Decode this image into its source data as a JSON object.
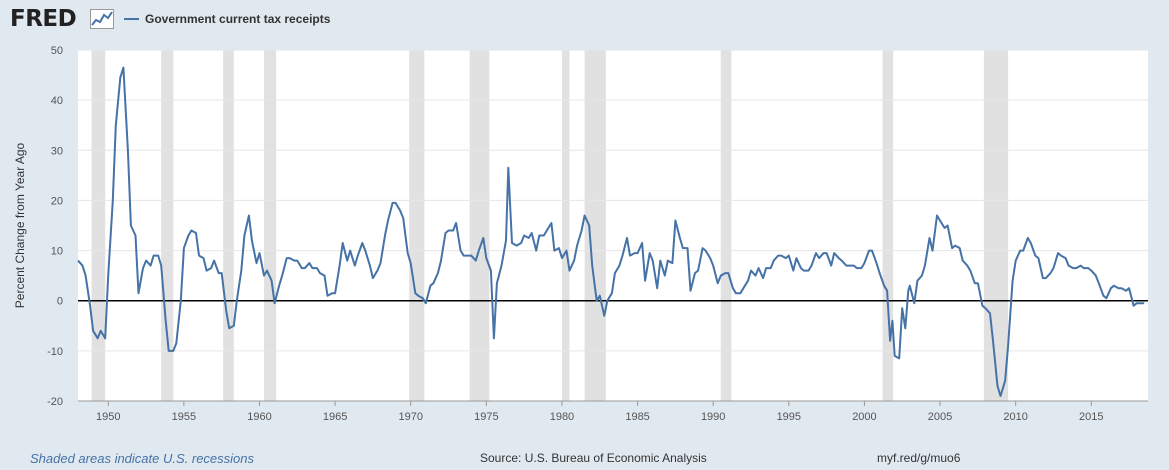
{
  "header": {
    "logo_text": "FRED",
    "logo_icon": "line-chart-icon"
  },
  "footer": {
    "recessions_note": "Shaded areas indicate U.S. recessions",
    "source": "Source: U.S. Bureau of Economic Analysis",
    "url": "myf.red/g/muo6"
  },
  "colors": {
    "line": "#4572a7",
    "recession": "#e1e1e1",
    "zero_line": "#000000",
    "grid": "#e6e6e6",
    "background": "#e1e9f0"
  },
  "chart_data": {
    "type": "line",
    "ylabel": "Percent Change from Year Ago",
    "xlabel": "",
    "xlim": [
      1948.0,
      2018.75
    ],
    "ylim": [
      -20,
      50
    ],
    "yticks": [
      "-20",
      "-10",
      "0",
      "10",
      "20",
      "30",
      "40",
      "50"
    ],
    "xticks": [
      "1950",
      "1955",
      "1960",
      "1965",
      "1970",
      "1975",
      "1980",
      "1985",
      "1990",
      "1995",
      "2000",
      "2005",
      "2010",
      "2015"
    ],
    "grid": "horizontal",
    "legend": "top-left",
    "recessions": [
      [
        1948.9,
        1949.8
      ],
      [
        1953.5,
        1954.3
      ],
      [
        1957.6,
        1958.3
      ],
      [
        1960.3,
        1961.1
      ],
      [
        1969.9,
        1970.9
      ],
      [
        1973.9,
        1975.2
      ],
      [
        1980.0,
        1980.5
      ],
      [
        1981.5,
        1982.9
      ],
      [
        1990.5,
        1991.2
      ],
      [
        2001.2,
        2001.9
      ],
      [
        2007.9,
        2009.5
      ]
    ],
    "series": [
      {
        "name": "Government current tax receipts",
        "points": [
          [
            1948.0,
            8
          ],
          [
            1948.3,
            7
          ],
          [
            1948.5,
            5
          ],
          [
            1948.8,
            -1
          ],
          [
            1949.0,
            -6
          ],
          [
            1949.3,
            -7.5
          ],
          [
            1949.5,
            -6
          ],
          [
            1949.8,
            -7.5
          ],
          [
            1950.0,
            5
          ],
          [
            1950.3,
            20
          ],
          [
            1950.5,
            35
          ],
          [
            1950.8,
            44.5
          ],
          [
            1951.0,
            46.5
          ],
          [
            1951.3,
            30
          ],
          [
            1951.5,
            15
          ],
          [
            1951.8,
            13
          ],
          [
            1952.0,
            1.5
          ],
          [
            1952.3,
            6.5
          ],
          [
            1952.5,
            8
          ],
          [
            1952.8,
            7
          ],
          [
            1953.0,
            9
          ],
          [
            1953.3,
            9
          ],
          [
            1953.5,
            7
          ],
          [
            1953.8,
            -4
          ],
          [
            1954.0,
            -10
          ],
          [
            1954.3,
            -10
          ],
          [
            1954.5,
            -8.5
          ],
          [
            1954.8,
            0
          ],
          [
            1955.0,
            10.5
          ],
          [
            1955.3,
            13
          ],
          [
            1955.5,
            14
          ],
          [
            1955.8,
            13.5
          ],
          [
            1956.0,
            9
          ],
          [
            1956.3,
            8.5
          ],
          [
            1956.5,
            6
          ],
          [
            1956.8,
            6.5
          ],
          [
            1957.0,
            8
          ],
          [
            1957.3,
            5.5
          ],
          [
            1957.5,
            5.5
          ],
          [
            1957.8,
            -2
          ],
          [
            1958.0,
            -5.5
          ],
          [
            1958.3,
            -5
          ],
          [
            1958.5,
            0
          ],
          [
            1958.8,
            6
          ],
          [
            1959.0,
            13
          ],
          [
            1959.3,
            17
          ],
          [
            1959.5,
            12
          ],
          [
            1959.8,
            7.5
          ],
          [
            1960.0,
            9.5
          ],
          [
            1960.3,
            5
          ],
          [
            1960.5,
            6
          ],
          [
            1960.8,
            4
          ],
          [
            1961.0,
            -0.5
          ],
          [
            1961.3,
            3
          ],
          [
            1961.5,
            5
          ],
          [
            1961.8,
            8.5
          ],
          [
            1962.0,
            8.5
          ],
          [
            1962.3,
            8
          ],
          [
            1962.5,
            8
          ],
          [
            1962.8,
            6.5
          ],
          [
            1963.0,
            6.5
          ],
          [
            1963.3,
            7.5
          ],
          [
            1963.5,
            6.5
          ],
          [
            1963.8,
            6.5
          ],
          [
            1964.0,
            5.5
          ],
          [
            1964.3,
            5
          ],
          [
            1964.5,
            1
          ],
          [
            1964.8,
            1.5
          ],
          [
            1965.0,
            1.5
          ],
          [
            1965.3,
            7
          ],
          [
            1965.5,
            11.5
          ],
          [
            1965.8,
            8
          ],
          [
            1966.0,
            10
          ],
          [
            1966.3,
            7
          ],
          [
            1966.5,
            9
          ],
          [
            1966.8,
            11.5
          ],
          [
            1967.0,
            10
          ],
          [
            1967.3,
            7
          ],
          [
            1967.5,
            4.5
          ],
          [
            1967.8,
            6
          ],
          [
            1968.0,
            7.5
          ],
          [
            1968.3,
            13
          ],
          [
            1968.5,
            16
          ],
          [
            1968.8,
            19.5
          ],
          [
            1969.0,
            19.5
          ],
          [
            1969.3,
            18
          ],
          [
            1969.5,
            16.5
          ],
          [
            1969.8,
            9.5
          ],
          [
            1970.0,
            7.5
          ],
          [
            1970.3,
            1.5
          ],
          [
            1970.5,
            1
          ],
          [
            1970.8,
            0.5
          ],
          [
            1971.0,
            -0.5
          ],
          [
            1971.3,
            3
          ],
          [
            1971.5,
            3.5
          ],
          [
            1971.8,
            5.5
          ],
          [
            1972.0,
            8
          ],
          [
            1972.3,
            13.5
          ],
          [
            1972.5,
            14
          ],
          [
            1972.8,
            14
          ],
          [
            1973.0,
            15.5
          ],
          [
            1973.3,
            10
          ],
          [
            1973.5,
            9
          ],
          [
            1973.8,
            9
          ],
          [
            1974.0,
            9
          ],
          [
            1974.3,
            8
          ],
          [
            1974.5,
            10
          ],
          [
            1974.8,
            12.5
          ],
          [
            1975.0,
            8.5
          ],
          [
            1975.3,
            6
          ],
          [
            1975.5,
            -7.5
          ],
          [
            1975.7,
            3.5
          ],
          [
            1976.0,
            7
          ],
          [
            1976.3,
            12
          ],
          [
            1976.45,
            26.5
          ],
          [
            1976.7,
            11.5
          ],
          [
            1977.0,
            11
          ],
          [
            1977.3,
            11.5
          ],
          [
            1977.5,
            13
          ],
          [
            1977.8,
            12.5
          ],
          [
            1978.0,
            13.5
          ],
          [
            1978.3,
            10
          ],
          [
            1978.5,
            13
          ],
          [
            1978.8,
            13
          ],
          [
            1979.0,
            14
          ],
          [
            1979.3,
            15.5
          ],
          [
            1979.5,
            10
          ],
          [
            1979.8,
            10.5
          ],
          [
            1980.0,
            8.5
          ],
          [
            1980.3,
            10
          ],
          [
            1980.5,
            6
          ],
          [
            1980.8,
            8
          ],
          [
            1981.0,
            11
          ],
          [
            1981.3,
            14
          ],
          [
            1981.5,
            17
          ],
          [
            1981.8,
            15
          ],
          [
            1982.0,
            7
          ],
          [
            1982.3,
            0
          ],
          [
            1982.5,
            1
          ],
          [
            1982.8,
            -3
          ],
          [
            1983.0,
            0
          ],
          [
            1983.3,
            1.5
          ],
          [
            1983.5,
            5.5
          ],
          [
            1983.8,
            7
          ],
          [
            1984.0,
            9
          ],
          [
            1984.3,
            12.5
          ],
          [
            1984.5,
            9
          ],
          [
            1984.8,
            9.5
          ],
          [
            1985.0,
            9.5
          ],
          [
            1985.3,
            11.5
          ],
          [
            1985.5,
            4
          ],
          [
            1985.8,
            9.5
          ],
          [
            1986.0,
            8
          ],
          [
            1986.3,
            2.5
          ],
          [
            1986.5,
            8
          ],
          [
            1986.8,
            5
          ],
          [
            1987.0,
            8
          ],
          [
            1987.3,
            7.5
          ],
          [
            1987.5,
            16
          ],
          [
            1987.8,
            12.5
          ],
          [
            1988.0,
            10.5
          ],
          [
            1988.3,
            10.5
          ],
          [
            1988.5,
            2
          ],
          [
            1988.8,
            5.5
          ],
          [
            1989.0,
            6
          ],
          [
            1989.3,
            10.5
          ],
          [
            1989.5,
            10
          ],
          [
            1989.8,
            8.5
          ],
          [
            1990.0,
            7
          ],
          [
            1990.3,
            3.5
          ],
          [
            1990.5,
            5
          ],
          [
            1990.8,
            5.5
          ],
          [
            1991.0,
            5.5
          ],
          [
            1991.3,
            2.5
          ],
          [
            1991.5,
            1.5
          ],
          [
            1991.8,
            1.5
          ],
          [
            1992.0,
            2.5
          ],
          [
            1992.3,
            4
          ],
          [
            1992.5,
            6
          ],
          [
            1992.8,
            5
          ],
          [
            1993.0,
            6.5
          ],
          [
            1993.3,
            4.5
          ],
          [
            1993.5,
            6.5
          ],
          [
            1993.8,
            6.5
          ],
          [
            1994.0,
            8
          ],
          [
            1994.3,
            9
          ],
          [
            1994.5,
            9
          ],
          [
            1994.8,
            8.5
          ],
          [
            1995.0,
            9
          ],
          [
            1995.3,
            6
          ],
          [
            1995.5,
            8.5
          ],
          [
            1995.8,
            6.5
          ],
          [
            1996.0,
            6
          ],
          [
            1996.3,
            6
          ],
          [
            1996.5,
            7
          ],
          [
            1996.8,
            9.5
          ],
          [
            1997.0,
            8.5
          ],
          [
            1997.3,
            9.5
          ],
          [
            1997.5,
            9.5
          ],
          [
            1997.8,
            7
          ],
          [
            1998.0,
            9.5
          ],
          [
            1998.3,
            8.5
          ],
          [
            1998.5,
            8
          ],
          [
            1998.8,
            7
          ],
          [
            1999.0,
            7
          ],
          [
            1999.3,
            7
          ],
          [
            1999.5,
            6.5
          ],
          [
            1999.8,
            6.5
          ],
          [
            2000.0,
            7.5
          ],
          [
            2000.3,
            10
          ],
          [
            2000.5,
            10
          ],
          [
            2000.8,
            7.5
          ],
          [
            2001.0,
            5.5
          ],
          [
            2001.3,
            3
          ],
          [
            2001.5,
            2
          ],
          [
            2001.7,
            -8
          ],
          [
            2001.85,
            -4
          ],
          [
            2002.0,
            -11
          ],
          [
            2002.3,
            -11.5
          ],
          [
            2002.5,
            -1.5
          ],
          [
            2002.7,
            -5.5
          ],
          [
            2002.9,
            2
          ],
          [
            2003.0,
            3
          ],
          [
            2003.3,
            -0.5
          ],
          [
            2003.5,
            4
          ],
          [
            2003.8,
            5
          ],
          [
            2004.0,
            7
          ],
          [
            2004.3,
            12.5
          ],
          [
            2004.5,
            10
          ],
          [
            2004.8,
            17
          ],
          [
            2005.0,
            16
          ],
          [
            2005.3,
            14.5
          ],
          [
            2005.5,
            15
          ],
          [
            2005.8,
            10.5
          ],
          [
            2006.0,
            11
          ],
          [
            2006.3,
            10.5
          ],
          [
            2006.5,
            8
          ],
          [
            2006.8,
            7
          ],
          [
            2007.0,
            6
          ],
          [
            2007.3,
            3.5
          ],
          [
            2007.5,
            3.5
          ],
          [
            2007.8,
            -1
          ],
          [
            2008.0,
            -1.5
          ],
          [
            2008.3,
            -2.5
          ],
          [
            2008.5,
            -8
          ],
          [
            2008.8,
            -17
          ],
          [
            2009.0,
            -19
          ],
          [
            2009.3,
            -16
          ],
          [
            2009.5,
            -9
          ],
          [
            2009.8,
            4
          ],
          [
            2010.0,
            8
          ],
          [
            2010.3,
            10
          ],
          [
            2010.5,
            10
          ],
          [
            2010.8,
            12.5
          ],
          [
            2011.0,
            11.5
          ],
          [
            2011.3,
            9
          ],
          [
            2011.5,
            8.5
          ],
          [
            2011.8,
            4.5
          ],
          [
            2012.0,
            4.5
          ],
          [
            2012.3,
            5.5
          ],
          [
            2012.5,
            6.5
          ],
          [
            2012.8,
            9.5
          ],
          [
            2013.0,
            9
          ],
          [
            2013.3,
            8.5
          ],
          [
            2013.5,
            7
          ],
          [
            2013.8,
            6.5
          ],
          [
            2014.0,
            6.5
          ],
          [
            2014.3,
            7
          ],
          [
            2014.5,
            6.5
          ],
          [
            2014.8,
            6.5
          ],
          [
            2015.0,
            6
          ],
          [
            2015.3,
            5
          ],
          [
            2015.5,
            3.5
          ],
          [
            2015.8,
            1
          ],
          [
            2016.0,
            0.5
          ],
          [
            2016.3,
            2.5
          ],
          [
            2016.5,
            3
          ],
          [
            2016.8,
            2.5
          ],
          [
            2017.0,
            2.5
          ],
          [
            2017.3,
            2
          ],
          [
            2017.5,
            2.5
          ],
          [
            2017.8,
            -1
          ],
          [
            2018.0,
            -0.5
          ],
          [
            2018.3,
            -0.5
          ],
          [
            2018.5,
            -0.5
          ]
        ]
      }
    ]
  }
}
